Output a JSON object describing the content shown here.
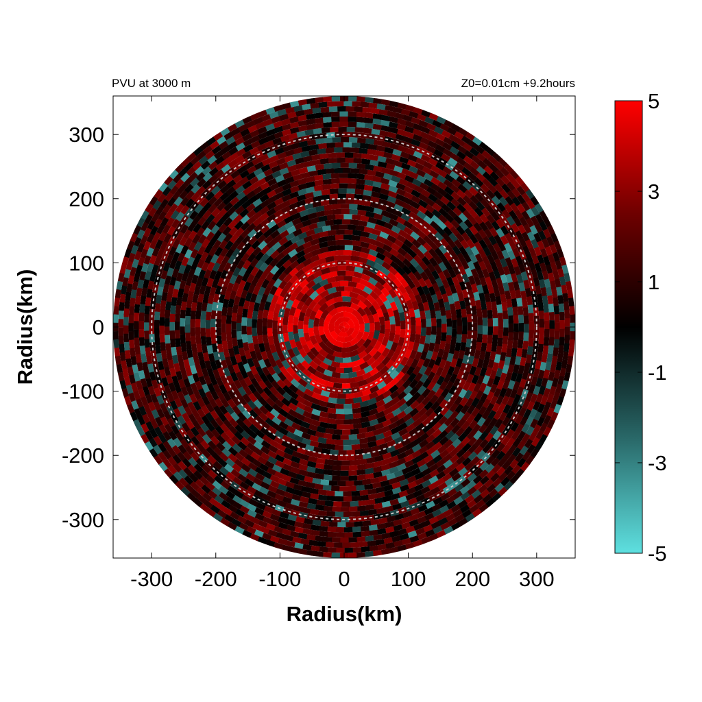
{
  "chart_data": {
    "type": "heatmap",
    "title_left": "PVU at  3000 m",
    "title_right": "Z0=0.01cm  +9.2hours",
    "xlabel": "Radius(km)",
    "ylabel": "Radius(km)",
    "xlim": [
      -360,
      360
    ],
    "ylim": [
      -360,
      360
    ],
    "x_ticks": [
      -300,
      -200,
      -100,
      0,
      100,
      200,
      300
    ],
    "y_ticks": [
      300,
      200,
      100,
      0,
      -100,
      -200,
      -300
    ],
    "x_tick_labels": [
      "-300",
      "-200",
      "-100",
      "0",
      "100",
      "200",
      "300"
    ],
    "y_tick_labels": [
      "300",
      "200",
      "100",
      "0",
      "-100",
      "-200",
      "-300"
    ],
    "grid": false,
    "domain_radius_km": 360,
    "reference_circles_km": [
      100,
      200,
      300
    ],
    "colorbar": {
      "range": [
        -5,
        5
      ],
      "tick_values": [
        5,
        3,
        1,
        -1,
        -3,
        -5
      ],
      "tick_labels": [
        "5",
        "3",
        "1",
        "-1",
        "-3",
        "-5"
      ],
      "colors": {
        "min": "#5ee0e0",
        "mid_low": "#2a6a6a",
        "zero": "#000000",
        "mid_high": "#6e0000",
        "max": "#ff0000"
      }
    },
    "pattern": {
      "inner_core_radius_km": 25,
      "inner_core_value": 5,
      "inner_region_radius_km": 120,
      "inner_region_mean": 3.2,
      "outer_region_mean": 1.2,
      "negative_anomaly_fraction": 0.16,
      "negative_anomaly_value": -3.5
    },
    "colors": {
      "reference_circle": "#c8c8c8",
      "frame": "#000000"
    }
  }
}
